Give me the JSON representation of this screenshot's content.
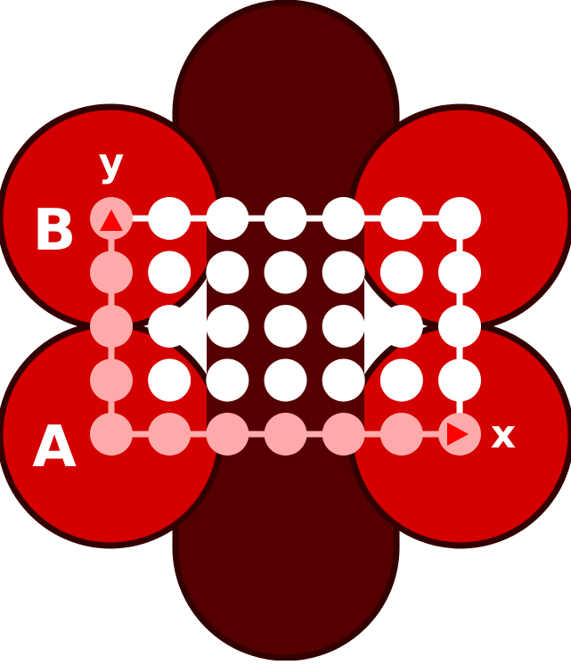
{
  "labels": {
    "a": "A",
    "b": "B",
    "x": "x",
    "y": "y"
  },
  "grid": {
    "columns": 7,
    "rows": 5
  },
  "colors": {
    "outline": "#330000",
    "dark_lobe": "#550000",
    "red_lobe": "#d40000",
    "center": "#550000",
    "white_dot": "#ffffff",
    "axis_dot": "#ffaaaa",
    "arrow": "#ff0000",
    "label_text": "#ffffff"
  }
}
